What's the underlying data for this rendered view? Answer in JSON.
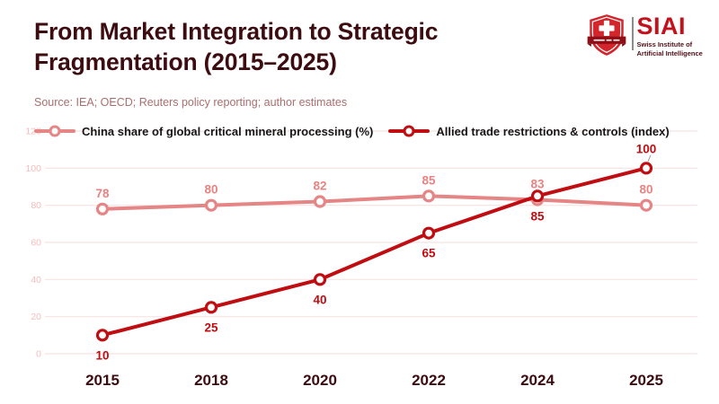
{
  "header": {
    "title": "From Market Integration to Strategic Fragmentation (2015–2025)",
    "source": "Source: IEA; OECD; Reuters policy reporting; author estimates"
  },
  "logo": {
    "acronym": "SIAI",
    "subtitle_line1": "Swiss Institute of",
    "subtitle_line2": "Artificial Intelligence"
  },
  "legend": [
    {
      "label": "China share of global critical mineral processing (%)",
      "color": "#e58585"
    },
    {
      "label": "Allied trade restrictions & controls (index)",
      "color": "#c00d12"
    }
  ],
  "chart_data": {
    "type": "line",
    "title": "From Market Integration to Strategic Fragmentation (2015–2025)",
    "categories": [
      "2015",
      "2018",
      "2020",
      "2022",
      "2024",
      "2025"
    ],
    "series": [
      {
        "name": "China share of global critical mineral processing (%)",
        "values": [
          78,
          80,
          82,
          85,
          83,
          80
        ],
        "color": "#e58585",
        "label_color": "#e98282",
        "label_position": "above"
      },
      {
        "name": "Allied trade restrictions & controls (index)",
        "values": [
          10,
          25,
          40,
          65,
          85,
          100
        ],
        "color": "#c00d12",
        "label_color": "#c00d12",
        "label_position": "below",
        "label_position_overrides": {
          "5": "above-leader"
        }
      }
    ],
    "yticks": [
      0,
      20,
      40,
      60,
      80,
      100,
      120
    ],
    "ylim": [
      0,
      120
    ],
    "grid": true,
    "legend_position": "top",
    "xlabel": "",
    "ylabel": ""
  },
  "colors": {
    "title": "#3d0c11",
    "source": "#a96e6e",
    "axis_labels": "#3d0c11",
    "ytick": "#f5bcbc",
    "gridline": "#f8e2e2",
    "leader": "#9c9c9c",
    "logo_red": "#c3121c",
    "shield_red": "#d2262c",
    "ribbon_red": "#8e1016",
    "logo_subtitle": "#4d1016"
  }
}
